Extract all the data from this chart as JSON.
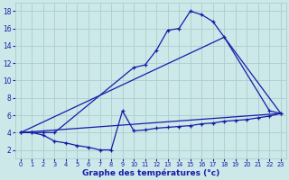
{
  "xlabel": "Graphe des températures (°c)",
  "xlim": [
    -0.5,
    23.5
  ],
  "ylim": [
    1.0,
    19.0
  ],
  "yticks": [
    2,
    4,
    6,
    8,
    10,
    12,
    14,
    16,
    18
  ],
  "xticks": [
    0,
    1,
    2,
    3,
    4,
    5,
    6,
    7,
    8,
    9,
    10,
    11,
    12,
    13,
    14,
    15,
    16,
    17,
    18,
    19,
    20,
    21,
    22,
    23
  ],
  "bg_color": "#cce8e8",
  "line_color": "#1a1aaa",
  "grid_color": "#aacece",
  "line1_x": [
    0,
    1,
    2,
    3,
    10,
    11,
    12,
    13,
    14,
    15,
    16,
    17,
    18,
    22,
    23
  ],
  "line1_y": [
    4,
    4,
    4,
    4,
    11.5,
    11.8,
    13.5,
    15.8,
    16.0,
    18.0,
    17.6,
    16.8,
    15.0,
    6.5,
    6.2
  ],
  "line2_x": [
    0,
    18,
    23
  ],
  "line2_y": [
    4,
    15.0,
    6.2
  ],
  "line3_x": [
    0,
    23
  ],
  "line3_y": [
    4,
    6.2
  ],
  "line4_x": [
    0,
    1,
    2,
    3,
    4,
    5,
    6,
    7,
    8,
    9,
    10,
    11,
    12,
    13,
    14,
    15,
    16,
    17,
    18,
    19,
    20,
    21,
    22,
    23
  ],
  "line4_y": [
    4.0,
    4.0,
    3.7,
    3.0,
    2.8,
    2.5,
    2.3,
    2.0,
    2.0,
    6.5,
    4.2,
    4.3,
    4.5,
    4.6,
    4.7,
    4.8,
    5.0,
    5.1,
    5.3,
    5.4,
    5.5,
    5.7,
    5.9,
    6.2
  ]
}
